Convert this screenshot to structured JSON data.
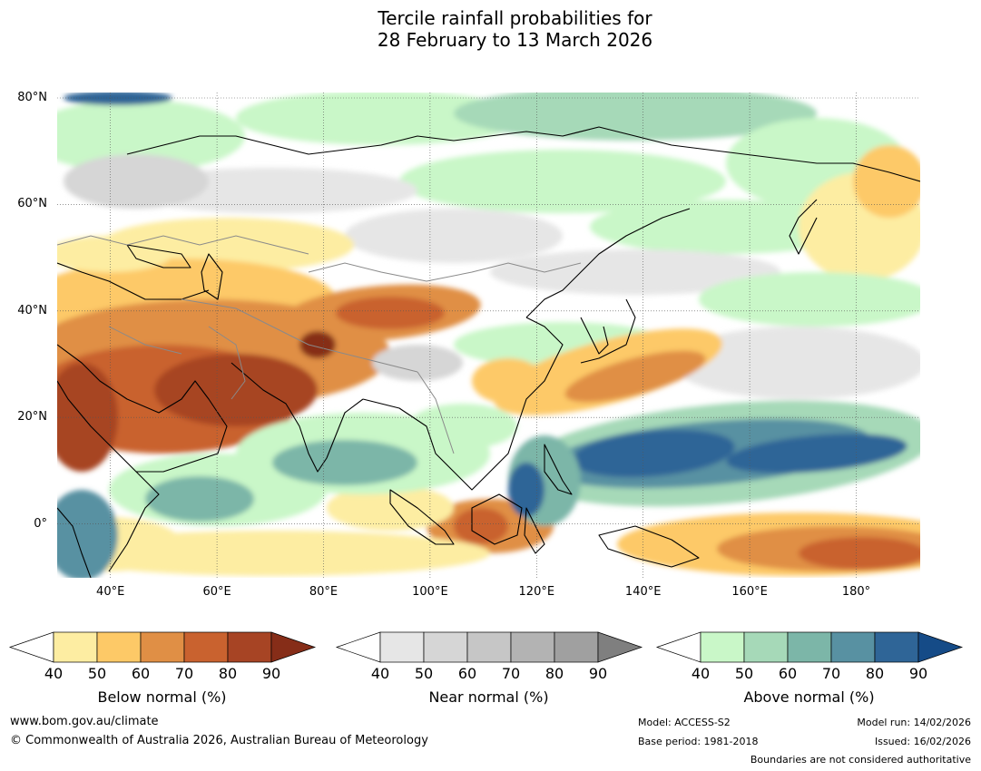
{
  "title": {
    "line1": "Tercile rainfall probabilities for",
    "line2": "28 February to 13 March 2026"
  },
  "axes": {
    "lat_labels": [
      "80°N",
      "60°N",
      "40°N",
      "20°N",
      "0°"
    ],
    "lon_labels": [
      "40°E",
      "60°E",
      "80°E",
      "100°E",
      "120°E",
      "140°E",
      "160°E",
      "180°"
    ]
  },
  "colorbars": [
    {
      "name": "below",
      "label": "Below normal (%)",
      "ticks": [
        "40",
        "50",
        "60",
        "70",
        "80",
        "90"
      ],
      "colors": [
        "#ffffff",
        "#fdeda2",
        "#fdc967",
        "#e08f45",
        "#c9622f",
        "#a74424",
        "#862d18"
      ]
    },
    {
      "name": "near",
      "label": "Near normal (%)",
      "ticks": [
        "40",
        "50",
        "60",
        "70",
        "80",
        "90"
      ],
      "colors": [
        "#ffffff",
        "#e6e6e6",
        "#d6d6d6",
        "#c6c6c6",
        "#b3b3b3",
        "#a0a0a0",
        "#7f7f7f"
      ]
    },
    {
      "name": "above",
      "label": "Above normal (%)",
      "ticks": [
        "40",
        "50",
        "60",
        "70",
        "80",
        "90"
      ],
      "colors": [
        "#ffffff",
        "#c9f7c8",
        "#a6d9b8",
        "#7cb6a8",
        "#5891a2",
        "#2f6597",
        "#154b87"
      ]
    }
  ],
  "footer": {
    "website": "www.bom.gov.au/climate",
    "copyright": "© Commonwealth of Australia 2026, Australian Bureau of Meteorology",
    "model": "Model: ACCESS-S2",
    "base_period": "Base period: 1981-2018",
    "model_run": "Model run: 14/02/2026",
    "issued": "Issued: 16/02/2026",
    "disclaimer": "Boundaries are not considered authoritative"
  }
}
